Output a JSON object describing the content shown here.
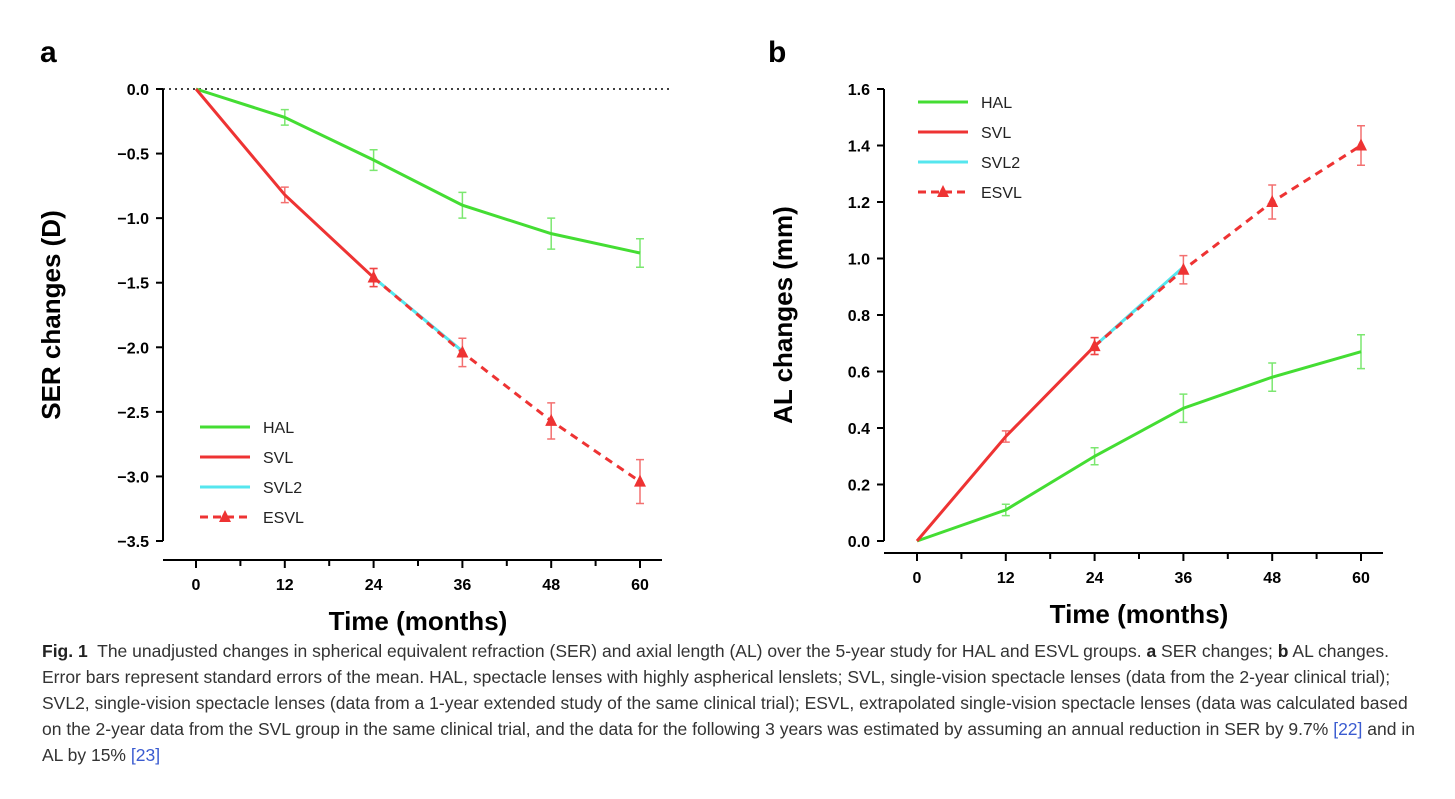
{
  "chart_data": [
    {
      "type": "line",
      "panel_label": "a",
      "xlabel": "Time (months)",
      "ylabel": "SER changes (D)",
      "ylim": [
        -3.5,
        0
      ],
      "yticks": [
        "0.0",
        "-0.5",
        "-1.0",
        "-1.5",
        "-2.0",
        "-2.5",
        "-3.0",
        "-3.5"
      ],
      "ytick_values": [
        0,
        -0.5,
        -1,
        -1.5,
        -2,
        -2.5,
        -3,
        -3.5
      ],
      "xlim": [
        0,
        60
      ],
      "xticks": [
        "0",
        "12",
        "24",
        "36",
        "48",
        "60"
      ],
      "xtick_values": [
        0,
        12,
        24,
        36,
        48,
        60
      ],
      "reference_line": 0,
      "legend_position": "bottom-left",
      "series": [
        {
          "name": "HAL",
          "color": "#44dd33",
          "dashed": false,
          "marker": false,
          "x": [
            0,
            12,
            24,
            36,
            48,
            60
          ],
          "y": [
            0,
            -0.22,
            -0.55,
            -0.9,
            -1.12,
            -1.27
          ],
          "err": [
            0,
            0.06,
            0.08,
            0.1,
            0.12,
            0.11
          ]
        },
        {
          "name": "SVL",
          "color": "#ee3333",
          "dashed": false,
          "marker": false,
          "x": [
            0,
            12,
            24
          ],
          "y": [
            0,
            -0.82,
            -1.46
          ],
          "err": [
            0,
            0.06,
            0.07
          ]
        },
        {
          "name": "SVL2",
          "color": "#55e6ee",
          "dashed": false,
          "marker": false,
          "x": [
            24,
            36
          ],
          "y": [
            -1.46,
            -2.03
          ],
          "err": [
            0,
            0
          ]
        },
        {
          "name": "ESVL",
          "color": "#ee3333",
          "dashed": true,
          "marker": true,
          "x": [
            24,
            36,
            48,
            60
          ],
          "y": [
            -1.46,
            -2.04,
            -2.57,
            -3.04
          ],
          "err": [
            0.07,
            0.11,
            0.14,
            0.17
          ]
        }
      ]
    },
    {
      "type": "line",
      "panel_label": "b",
      "xlabel": "Time (months)",
      "ylabel": "AL changes (mm)",
      "ylim": [
        0,
        1.6
      ],
      "yticks": [
        "0.0",
        "0.2",
        "0.4",
        "0.6",
        "0.8",
        "1.0",
        "1.2",
        "1.4",
        "1.6"
      ],
      "ytick_values": [
        0,
        0.2,
        0.4,
        0.6,
        0.8,
        1.0,
        1.2,
        1.4,
        1.6
      ],
      "xlim": [
        0,
        60
      ],
      "xticks": [
        "0",
        "12",
        "24",
        "36",
        "48",
        "60"
      ],
      "xtick_values": [
        0,
        12,
        24,
        36,
        48,
        60
      ],
      "legend_position": "top-left",
      "series": [
        {
          "name": "HAL",
          "color": "#44dd33",
          "dashed": false,
          "marker": false,
          "x": [
            0,
            12,
            24,
            36,
            48,
            60
          ],
          "y": [
            0,
            0.11,
            0.3,
            0.47,
            0.58,
            0.67
          ],
          "err": [
            0,
            0.02,
            0.03,
            0.05,
            0.05,
            0.06
          ]
        },
        {
          "name": "SVL",
          "color": "#ee3333",
          "dashed": false,
          "marker": false,
          "x": [
            0,
            12,
            24
          ],
          "y": [
            0,
            0.37,
            0.69
          ],
          "err": [
            0,
            0.02,
            0.03
          ]
        },
        {
          "name": "SVL2",
          "color": "#55e6ee",
          "dashed": false,
          "marker": false,
          "x": [
            24,
            36
          ],
          "y": [
            0.69,
            0.97
          ],
          "err": [
            0,
            0
          ]
        },
        {
          "name": "ESVL",
          "color": "#ee3333",
          "dashed": true,
          "marker": true,
          "x": [
            24,
            36,
            48,
            60
          ],
          "y": [
            0.69,
            0.96,
            1.2,
            1.4
          ],
          "err": [
            0.03,
            0.05,
            0.06,
            0.07
          ]
        }
      ]
    }
  ],
  "caption": {
    "fig_label": "Fig. 1",
    "text1": "The unadjusted changes in spherical equivalent refraction (SER) and axial length (AL) over the 5-year study for HAL and ESVL groups.",
    "a_label": "a",
    "text2": "SER changes;",
    "b_label": "b",
    "text3": "AL changes. Error bars represent standard errors of the mean. HAL, spectacle lenses with highly aspherical lenslets; SVL, single-vision spectacle lenses (data from the 2-year clinical trial); SVL2, single-vision spectacle lenses (data from a 1-year extended study of the same clinical trial); ESVL, extrapolated single-vision spectacle lenses (data was calculated based on the 2-year data from the SVL group in the same clinical trial, and the data for the following 3 years was estimated by assuming an annual reduction in SER by 9.7%",
    "ref1": "[22]",
    "text4": "and in AL by 15%",
    "ref2": "[23]"
  }
}
